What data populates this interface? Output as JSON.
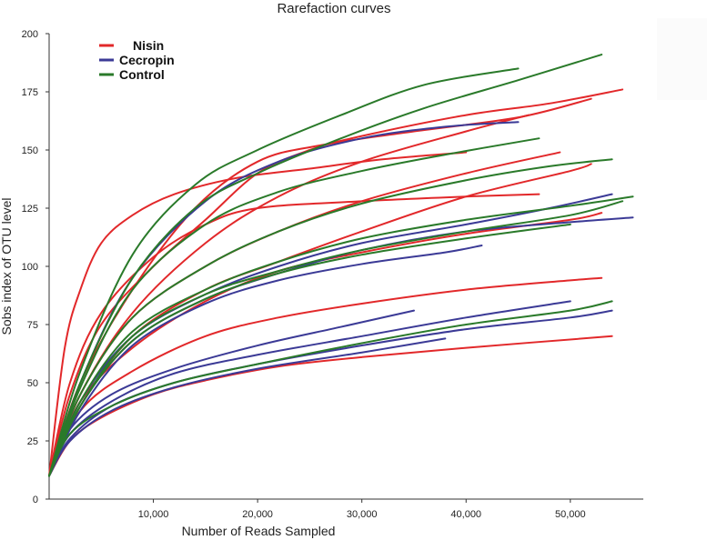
{
  "chart_data": {
    "type": "line",
    "title": "Rarefaction curves",
    "xlabel": "Number of Reads Sampled",
    "ylabel": "Sobs index of OTU level",
    "xlim": [
      0,
      57000
    ],
    "ylim": [
      0,
      200
    ],
    "x_ticks": [
      10000,
      20000,
      30000,
      40000,
      50000
    ],
    "x_tick_labels": [
      "10,000",
      "20,000",
      "30,000",
      "40,000",
      "50,000"
    ],
    "y_ticks": [
      0,
      25,
      50,
      75,
      100,
      125,
      150,
      175,
      200
    ],
    "y_tick_labels": [
      "0",
      "25",
      "50",
      "75",
      "100",
      "125",
      "150",
      "175",
      "200"
    ],
    "grid": false,
    "legend_position": "top-left",
    "legend": [
      {
        "label": "Nisin",
        "color": "#e2282a"
      },
      {
        "label": "Cecropin",
        "color": "#3b3a96"
      },
      {
        "label": "Control",
        "color": "#2a7a2a"
      }
    ],
    "series": [
      {
        "group": "Nisin",
        "color": "#e2282a",
        "points": [
          [
            0,
            10
          ],
          [
            1500,
            65
          ],
          [
            3000,
            90
          ],
          [
            5000,
            110
          ],
          [
            8000,
            122
          ],
          [
            12000,
            131
          ],
          [
            18000,
            138
          ],
          [
            25000,
            142
          ],
          [
            32000,
            146
          ],
          [
            40000,
            149
          ]
        ]
      },
      {
        "group": "Nisin",
        "color": "#e2282a",
        "points": [
          [
            0,
            10
          ],
          [
            2000,
            50
          ],
          [
            5000,
            80
          ],
          [
            10000,
            104
          ],
          [
            15000,
            118
          ],
          [
            20000,
            125
          ],
          [
            30000,
            128
          ],
          [
            40000,
            130
          ],
          [
            47000,
            131
          ]
        ]
      },
      {
        "group": "Nisin",
        "color": "#e2282a",
        "points": [
          [
            0,
            10
          ],
          [
            2000,
            45
          ],
          [
            5000,
            75
          ],
          [
            10000,
            100
          ],
          [
            15000,
            120
          ],
          [
            20000,
            140
          ],
          [
            25000,
            150
          ],
          [
            30000,
            156
          ],
          [
            40000,
            165
          ],
          [
            48000,
            170
          ],
          [
            55000,
            176
          ]
        ]
      },
      {
        "group": "Nisin",
        "color": "#e2282a",
        "points": [
          [
            0,
            10
          ],
          [
            3000,
            50
          ],
          [
            8000,
            90
          ],
          [
            14000,
            125
          ],
          [
            20000,
            145
          ],
          [
            26000,
            152
          ],
          [
            35000,
            158
          ],
          [
            45000,
            164
          ],
          [
            52000,
            172
          ]
        ]
      },
      {
        "group": "Nisin",
        "color": "#e2282a",
        "points": [
          [
            0,
            10
          ],
          [
            3000,
            45
          ],
          [
            8000,
            80
          ],
          [
            15000,
            110
          ],
          [
            22000,
            130
          ],
          [
            30000,
            145
          ],
          [
            40000,
            158
          ],
          [
            46000,
            165
          ]
        ]
      },
      {
        "group": "Nisin",
        "color": "#e2282a",
        "points": [
          [
            0,
            10
          ],
          [
            3000,
            45
          ],
          [
            8000,
            78
          ],
          [
            15000,
            100
          ],
          [
            22000,
            115
          ],
          [
            30000,
            128
          ],
          [
            40000,
            140
          ],
          [
            49000,
            149
          ]
        ]
      },
      {
        "group": "Nisin",
        "color": "#e2282a",
        "points": [
          [
            0,
            10
          ],
          [
            3000,
            40
          ],
          [
            8000,
            70
          ],
          [
            15000,
            90
          ],
          [
            22000,
            102
          ],
          [
            30000,
            115
          ],
          [
            40000,
            130
          ],
          [
            50000,
            141
          ],
          [
            52000,
            144
          ]
        ]
      },
      {
        "group": "Nisin",
        "color": "#e2282a",
        "points": [
          [
            0,
            10
          ],
          [
            3000,
            42
          ],
          [
            8000,
            65
          ],
          [
            15000,
            85
          ],
          [
            22000,
            98
          ],
          [
            30000,
            106
          ],
          [
            40000,
            114
          ],
          [
            50000,
            120
          ],
          [
            53000,
            123
          ]
        ]
      },
      {
        "group": "Nisin",
        "color": "#e2282a",
        "points": [
          [
            0,
            10
          ],
          [
            3000,
            38
          ],
          [
            8000,
            55
          ],
          [
            15000,
            70
          ],
          [
            22000,
            78
          ],
          [
            30000,
            84
          ],
          [
            40000,
            90
          ],
          [
            50000,
            94
          ],
          [
            53000,
            95
          ]
        ]
      },
      {
        "group": "Nisin",
        "color": "#e2282a",
        "points": [
          [
            0,
            10
          ],
          [
            2000,
            25
          ],
          [
            5000,
            35
          ],
          [
            10000,
            45
          ],
          [
            15000,
            51
          ],
          [
            22000,
            57
          ],
          [
            30000,
            61
          ],
          [
            40000,
            65
          ],
          [
            54000,
            70
          ]
        ]
      },
      {
        "group": "Cecropin",
        "color": "#3b3a96",
        "points": [
          [
            0,
            10
          ],
          [
            3000,
            50
          ],
          [
            8000,
            95
          ],
          [
            15000,
            128
          ],
          [
            22000,
            145
          ],
          [
            30000,
            155
          ],
          [
            38000,
            160
          ],
          [
            45000,
            162
          ]
        ]
      },
      {
        "group": "Cecropin",
        "color": "#3b3a96",
        "points": [
          [
            0,
            10
          ],
          [
            3000,
            42
          ],
          [
            8000,
            70
          ],
          [
            15000,
            88
          ],
          [
            22000,
            100
          ],
          [
            30000,
            110
          ],
          [
            40000,
            118
          ],
          [
            48000,
            125
          ],
          [
            54000,
            131
          ]
        ]
      },
      {
        "group": "Cecropin",
        "color": "#3b3a96",
        "points": [
          [
            0,
            10
          ],
          [
            3000,
            40
          ],
          [
            8000,
            68
          ],
          [
            15000,
            86
          ],
          [
            22000,
            97
          ],
          [
            30000,
            107
          ],
          [
            40000,
            115
          ],
          [
            50000,
            119
          ],
          [
            56000,
            121
          ]
        ]
      },
      {
        "group": "Cecropin",
        "color": "#3b3a96",
        "points": [
          [
            0,
            10
          ],
          [
            3000,
            38
          ],
          [
            8000,
            66
          ],
          [
            15000,
            84
          ],
          [
            22000,
            94
          ],
          [
            30000,
            101
          ],
          [
            38000,
            106
          ],
          [
            41500,
            109
          ]
        ]
      },
      {
        "group": "Cecropin",
        "color": "#3b3a96",
        "points": [
          [
            0,
            10
          ],
          [
            2000,
            30
          ],
          [
            6000,
            45
          ],
          [
            12000,
            56
          ],
          [
            20000,
            66
          ],
          [
            28000,
            74
          ],
          [
            35000,
            81
          ]
        ]
      },
      {
        "group": "Cecropin",
        "color": "#3b3a96",
        "points": [
          [
            0,
            10
          ],
          [
            2000,
            28
          ],
          [
            6000,
            42
          ],
          [
            12000,
            54
          ],
          [
            20000,
            62
          ],
          [
            30000,
            70
          ],
          [
            40000,
            78
          ],
          [
            50000,
            85
          ]
        ]
      },
      {
        "group": "Cecropin",
        "color": "#3b3a96",
        "points": [
          [
            0,
            10
          ],
          [
            2000,
            26
          ],
          [
            6000,
            40
          ],
          [
            12000,
            50
          ],
          [
            20000,
            58
          ],
          [
            30000,
            66
          ],
          [
            40000,
            73
          ],
          [
            50000,
            78
          ],
          [
            54000,
            81
          ]
        ]
      },
      {
        "group": "Cecropin",
        "color": "#3b3a96",
        "points": [
          [
            0,
            10
          ],
          [
            2000,
            25
          ],
          [
            6000,
            38
          ],
          [
            12000,
            48
          ],
          [
            20000,
            56
          ],
          [
            30000,
            63
          ],
          [
            38000,
            69
          ]
        ]
      },
      {
        "group": "Control",
        "color": "#2a7a2a",
        "points": [
          [
            0,
            10
          ],
          [
            3000,
            55
          ],
          [
            8000,
            105
          ],
          [
            14000,
            135
          ],
          [
            20000,
            150
          ],
          [
            28000,
            165
          ],
          [
            36000,
            178
          ],
          [
            45000,
            185
          ]
        ]
      },
      {
        "group": "Control",
        "color": "#2a7a2a",
        "points": [
          [
            0,
            10
          ],
          [
            3000,
            50
          ],
          [
            8000,
            95
          ],
          [
            14000,
            125
          ],
          [
            20000,
            140
          ],
          [
            28000,
            155
          ],
          [
            36000,
            168
          ],
          [
            45000,
            180
          ],
          [
            53000,
            191
          ]
        ]
      },
      {
        "group": "Control",
        "color": "#2a7a2a",
        "points": [
          [
            0,
            10
          ],
          [
            3000,
            48
          ],
          [
            8000,
            90
          ],
          [
            15000,
            118
          ],
          [
            22000,
            132
          ],
          [
            30000,
            141
          ],
          [
            38000,
            148
          ],
          [
            47000,
            155
          ]
        ]
      },
      {
        "group": "Control",
        "color": "#2a7a2a",
        "points": [
          [
            0,
            10
          ],
          [
            3000,
            45
          ],
          [
            8000,
            78
          ],
          [
            15000,
            100
          ],
          [
            22000,
            115
          ],
          [
            30000,
            127
          ],
          [
            40000,
            137
          ],
          [
            48000,
            143
          ],
          [
            54000,
            146
          ]
        ]
      },
      {
        "group": "Control",
        "color": "#2a7a2a",
        "points": [
          [
            0,
            10
          ],
          [
            3000,
            42
          ],
          [
            8000,
            72
          ],
          [
            15000,
            90
          ],
          [
            22000,
            102
          ],
          [
            30000,
            112
          ],
          [
            40000,
            120
          ],
          [
            50000,
            126
          ],
          [
            56000,
            130
          ]
        ]
      },
      {
        "group": "Control",
        "color": "#2a7a2a",
        "points": [
          [
            0,
            10
          ],
          [
            3000,
            40
          ],
          [
            8000,
            70
          ],
          [
            15000,
            88
          ],
          [
            22000,
            98
          ],
          [
            30000,
            107
          ],
          [
            40000,
            115
          ],
          [
            50000,
            122
          ],
          [
            55000,
            128
          ]
        ]
      },
      {
        "group": "Control",
        "color": "#2a7a2a",
        "points": [
          [
            0,
            10
          ],
          [
            3000,
            40
          ],
          [
            8000,
            68
          ],
          [
            15000,
            86
          ],
          [
            22000,
            97
          ],
          [
            30000,
            105
          ],
          [
            40000,
            112
          ],
          [
            50000,
            118
          ]
        ]
      },
      {
        "group": "Control",
        "color": "#2a7a2a",
        "points": [
          [
            0,
            10
          ],
          [
            2000,
            28
          ],
          [
            6000,
            40
          ],
          [
            12000,
            50
          ],
          [
            20000,
            58
          ],
          [
            30000,
            67
          ],
          [
            40000,
            75
          ],
          [
            50000,
            81
          ],
          [
            54000,
            85
          ]
        ]
      }
    ]
  }
}
